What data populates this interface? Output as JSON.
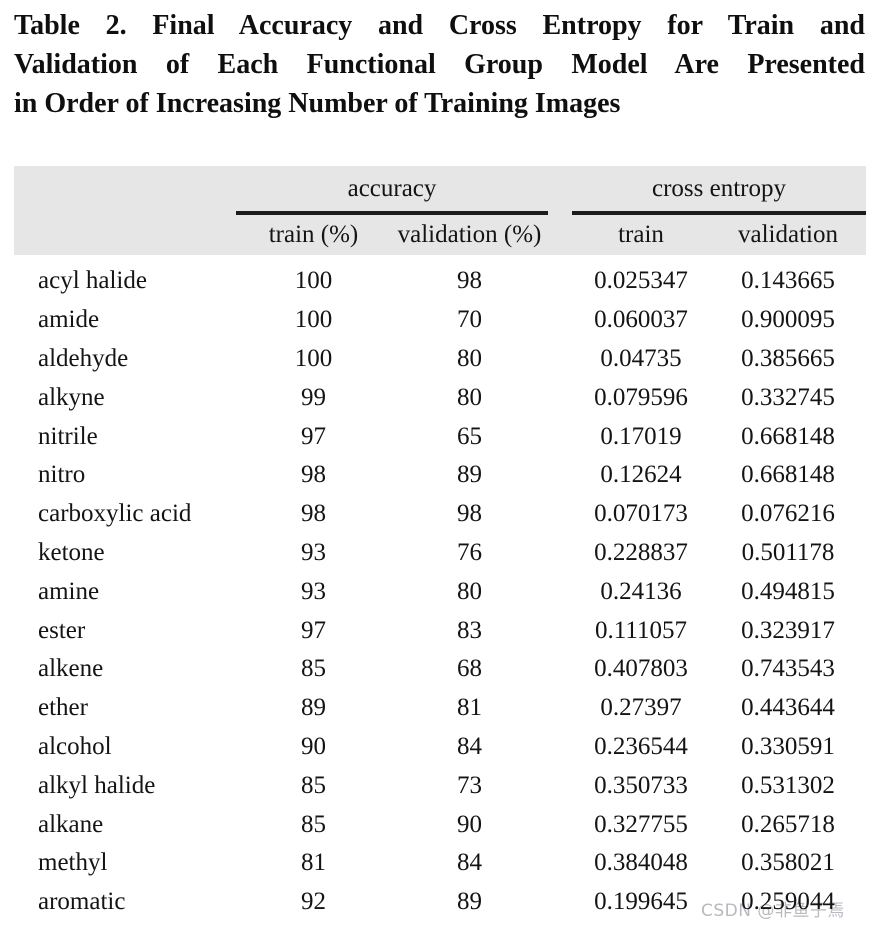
{
  "title": {
    "full": "Table 2. Final Accuracy and Cross Entropy for Train and Validation of Each Functional Group Model Are Presented in Order of Increasing Number of Training Images",
    "lines": [
      "Table 2. Final Accuracy and Cross Entropy for Train and",
      "Validation of Each Functional Group Model Are Presented",
      "in Order of Increasing Number of Training Images"
    ]
  },
  "table": {
    "group_headers": {
      "accuracy": "accuracy",
      "cross_entropy": "cross entropy"
    },
    "sub_headers": {
      "acc_train": "train (%)",
      "acc_validation": "validation (%)",
      "ce_train": "train",
      "ce_validation": "validation"
    },
    "rows": [
      {
        "name": "acyl halide",
        "acc_train": "100",
        "acc_val": "98",
        "ce_train": "0.025347",
        "ce_val": "0.143665"
      },
      {
        "name": "amide",
        "acc_train": "100",
        "acc_val": "70",
        "ce_train": "0.060037",
        "ce_val": "0.900095"
      },
      {
        "name": "aldehyde",
        "acc_train": "100",
        "acc_val": "80",
        "ce_train": "0.04735",
        "ce_val": "0.385665"
      },
      {
        "name": "alkyne",
        "acc_train": "99",
        "acc_val": "80",
        "ce_train": "0.079596",
        "ce_val": "0.332745"
      },
      {
        "name": "nitrile",
        "acc_train": "97",
        "acc_val": "65",
        "ce_train": "0.17019",
        "ce_val": "0.668148"
      },
      {
        "name": "nitro",
        "acc_train": "98",
        "acc_val": "89",
        "ce_train": "0.12624",
        "ce_val": "0.668148"
      },
      {
        "name": "carboxylic acid",
        "acc_train": "98",
        "acc_val": "98",
        "ce_train": "0.070173",
        "ce_val": "0.076216"
      },
      {
        "name": "ketone",
        "acc_train": "93",
        "acc_val": "76",
        "ce_train": "0.228837",
        "ce_val": "0.501178"
      },
      {
        "name": "amine",
        "acc_train": "93",
        "acc_val": "80",
        "ce_train": "0.24136",
        "ce_val": "0.494815"
      },
      {
        "name": "ester",
        "acc_train": "97",
        "acc_val": "83",
        "ce_train": "0.111057",
        "ce_val": "0.323917"
      },
      {
        "name": "alkene",
        "acc_train": "85",
        "acc_val": "68",
        "ce_train": "0.407803",
        "ce_val": "0.743543"
      },
      {
        "name": "ether",
        "acc_train": "89",
        "acc_val": "81",
        "ce_train": "0.27397",
        "ce_val": "0.443644"
      },
      {
        "name": "alcohol",
        "acc_train": "90",
        "acc_val": "84",
        "ce_train": "0.236544",
        "ce_val": "0.330591"
      },
      {
        "name": "alkyl halide",
        "acc_train": "85",
        "acc_val": "73",
        "ce_train": "0.350733",
        "ce_val": "0.531302"
      },
      {
        "name": "alkane",
        "acc_train": "85",
        "acc_val": "90",
        "ce_train": "0.327755",
        "ce_val": "0.265718"
      },
      {
        "name": "methyl",
        "acc_train": "81",
        "acc_val": "84",
        "ce_train": "0.384048",
        "ce_val": "0.358021"
      },
      {
        "name": "aromatic",
        "acc_train": "92",
        "acc_val": "89",
        "ce_train": "0.199645",
        "ce_val": "0.259044"
      }
    ]
  },
  "watermark": "CSDN @非鱼子焉",
  "colors": {
    "header_band": "#e6e6e6",
    "text": "#141414",
    "rule": "#1c1c1c",
    "watermark": "#b7babf"
  }
}
